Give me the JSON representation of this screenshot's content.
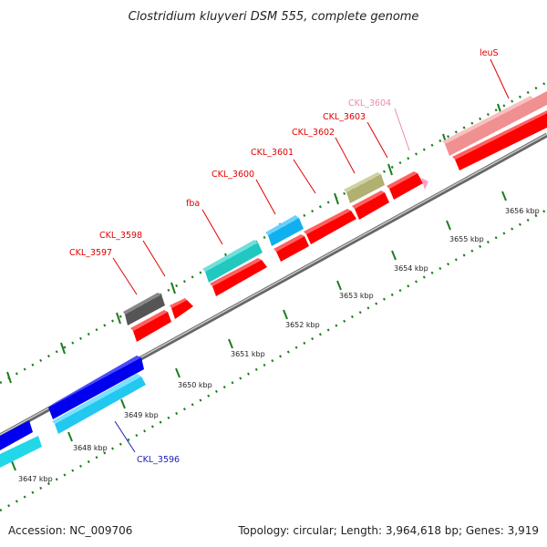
{
  "title": "Clostridium kluyveri DSM 555, complete genome",
  "footer": {
    "accession": "Accession: NC_009706",
    "summary": "Topology: circular; Length: 3,964,618 bp; Genes: 3,919"
  },
  "tick_labels": [
    "3647 kbp",
    "3648 kbp",
    "3649 kbp",
    "3650 kbp",
    "3651 kbp",
    "3652 kbp",
    "3653 kbp",
    "3654 kbp",
    "3655 kbp",
    "3656 kbp"
  ],
  "gene_labels": [
    {
      "id": "ckl3596",
      "text": "CKL_3596",
      "color": "#2020c0"
    },
    {
      "id": "ckl3597",
      "text": "CKL_3597",
      "color": "#e00000"
    },
    {
      "id": "ckl3598",
      "text": "CKL_3598",
      "color": "#e00000"
    },
    {
      "id": "fba",
      "text": "fba",
      "color": "#e00000"
    },
    {
      "id": "ckl3600",
      "text": "CKL_3600",
      "color": "#e00000"
    },
    {
      "id": "ckl3601",
      "text": "CKL_3601",
      "color": "#e00000"
    },
    {
      "id": "ckl3602",
      "text": "CKL_3602",
      "color": "#e00000"
    },
    {
      "id": "ckl3603",
      "text": "CKL_3603",
      "color": "#e00000"
    },
    {
      "id": "ckl3604",
      "text": "CKL_3604",
      "color": "#f08aa8"
    },
    {
      "id": "leus",
      "text": "leuS",
      "color": "#e00000"
    }
  ],
  "colors": {
    "backbone": "#8a8a8a",
    "tick": "#1e7d1e",
    "red": "#ff0000",
    "blue": "#0000ee",
    "cyan": "#22d8e8",
    "teal": "#20c8c0",
    "sky": "#10b0f0",
    "grey": "#555555",
    "olive": "#b0b070",
    "salmon": "#f09090",
    "pink": "#f8a0c8"
  }
}
